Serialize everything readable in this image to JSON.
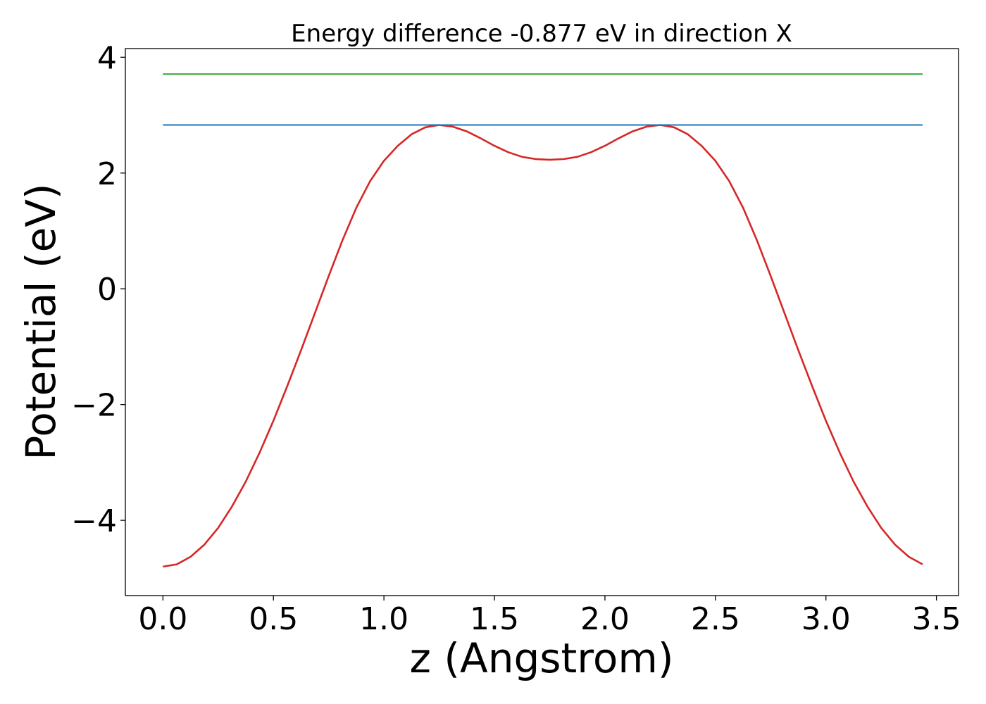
{
  "chart_data": {
    "type": "line",
    "title": "Energy difference -0.877 eV in direction X",
    "xlabel": "z (Angstrom)",
    "ylabel": "Potential (eV)",
    "xlim": [
      -0.17,
      3.6
    ],
    "ylim": [
      -5.3,
      4.15
    ],
    "grid": false,
    "xticks": [
      0.0,
      0.5,
      1.0,
      1.5,
      2.0,
      2.5,
      3.0,
      3.5
    ],
    "xtick_labels": [
      "0.0",
      "0.5",
      "1.0",
      "1.5",
      "2.0",
      "2.5",
      "3.0",
      "3.5"
    ],
    "yticks": [
      -4,
      -2,
      0,
      2,
      4
    ],
    "ytick_labels": [
      "−4",
      "−2",
      "0",
      "2",
      "4"
    ],
    "series": [
      {
        "color": "#d62728",
        "x": [
          0.0,
          0.0625,
          0.125,
          0.1875,
          0.25,
          0.3125,
          0.375,
          0.4375,
          0.5,
          0.5625,
          0.625,
          0.6875,
          0.75,
          0.8125,
          0.875,
          0.9375,
          1.0,
          1.0625,
          1.125,
          1.1875,
          1.25,
          1.3125,
          1.375,
          1.4375,
          1.5,
          1.5625,
          1.625,
          1.6875,
          1.75,
          1.8125,
          1.875,
          1.9375,
          2.0,
          2.0625,
          2.125,
          2.1875,
          2.25,
          2.3125,
          2.375,
          2.4375,
          2.5,
          2.5625,
          2.625,
          2.6875,
          2.75,
          2.8125,
          2.875,
          2.9375,
          3.0,
          3.0625,
          3.125,
          3.1875,
          3.25,
          3.3125,
          3.375,
          3.4375
        ],
        "y": [
          -4.8,
          -4.76,
          -4.63,
          -4.42,
          -4.13,
          -3.76,
          -3.33,
          -2.83,
          -2.28,
          -1.68,
          -1.06,
          -0.42,
          0.22,
          0.84,
          1.4,
          1.86,
          2.21,
          2.47,
          2.67,
          2.79,
          2.83,
          2.8,
          2.72,
          2.6,
          2.47,
          2.36,
          2.28,
          2.24,
          2.23,
          2.24,
          2.28,
          2.36,
          2.47,
          2.6,
          2.72,
          2.8,
          2.83,
          2.79,
          2.67,
          2.47,
          2.21,
          1.86,
          1.4,
          0.84,
          0.22,
          -0.42,
          -1.06,
          -1.68,
          -2.28,
          -2.83,
          -3.33,
          -3.76,
          -4.13,
          -4.42,
          -4.63,
          -4.76
        ]
      },
      {
        "color": "#1f77b4",
        "x": [
          0.0,
          3.4375
        ],
        "y": [
          2.83,
          2.83
        ]
      },
      {
        "color": "#2ca02c",
        "x": [
          0.0,
          3.4375
        ],
        "y": [
          3.71,
          3.71
        ]
      }
    ]
  }
}
